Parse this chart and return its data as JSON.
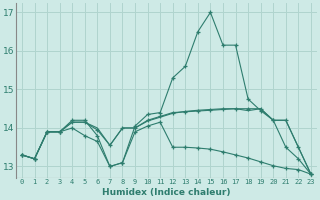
{
  "xlabel": "Humidex (Indice chaleur)",
  "x": [
    0,
    1,
    2,
    3,
    4,
    5,
    6,
    7,
    8,
    9,
    10,
    11,
    12,
    13,
    14,
    15,
    16,
    17,
    18,
    19,
    20,
    21,
    22,
    23
  ],
  "line1": [
    13.3,
    13.2,
    13.9,
    13.9,
    14.2,
    14.2,
    13.8,
    13.0,
    13.1,
    14.05,
    14.35,
    14.4,
    15.3,
    15.6,
    16.5,
    17.0,
    16.15,
    16.15,
    14.75,
    14.45,
    14.2,
    13.5,
    13.2,
    12.8
  ],
  "line2": [
    13.3,
    13.2,
    13.9,
    13.9,
    14.15,
    14.15,
    13.95,
    13.55,
    14.0,
    14.0,
    14.2,
    14.3,
    14.4,
    14.42,
    14.44,
    14.46,
    14.48,
    14.5,
    14.5,
    14.5,
    14.2,
    14.2,
    13.5,
    12.8
  ],
  "line3": [
    13.3,
    13.2,
    13.9,
    13.9,
    14.15,
    14.15,
    14.0,
    13.55,
    14.0,
    14.0,
    14.18,
    14.28,
    14.38,
    14.43,
    14.46,
    14.48,
    14.5,
    14.5,
    14.45,
    14.5,
    14.2,
    14.2,
    13.5,
    12.8
  ],
  "line4": [
    13.3,
    13.2,
    13.9,
    13.9,
    14.0,
    13.8,
    13.65,
    13.0,
    13.1,
    13.9,
    14.05,
    14.15,
    13.5,
    13.5,
    13.48,
    13.45,
    13.38,
    13.3,
    13.22,
    13.12,
    13.02,
    12.95,
    12.92,
    12.8
  ],
  "line_color": "#2e7d6e",
  "bg_color": "#ceeae6",
  "grid_color": "#b0d4ce",
  "ylim": [
    12.7,
    17.25
  ],
  "yticks": [
    13,
    14,
    15,
    16,
    17
  ],
  "xticks": [
    0,
    1,
    2,
    3,
    4,
    5,
    6,
    7,
    8,
    9,
    10,
    11,
    12,
    13,
    14,
    15,
    16,
    17,
    18,
    19,
    20,
    21,
    22,
    23
  ]
}
